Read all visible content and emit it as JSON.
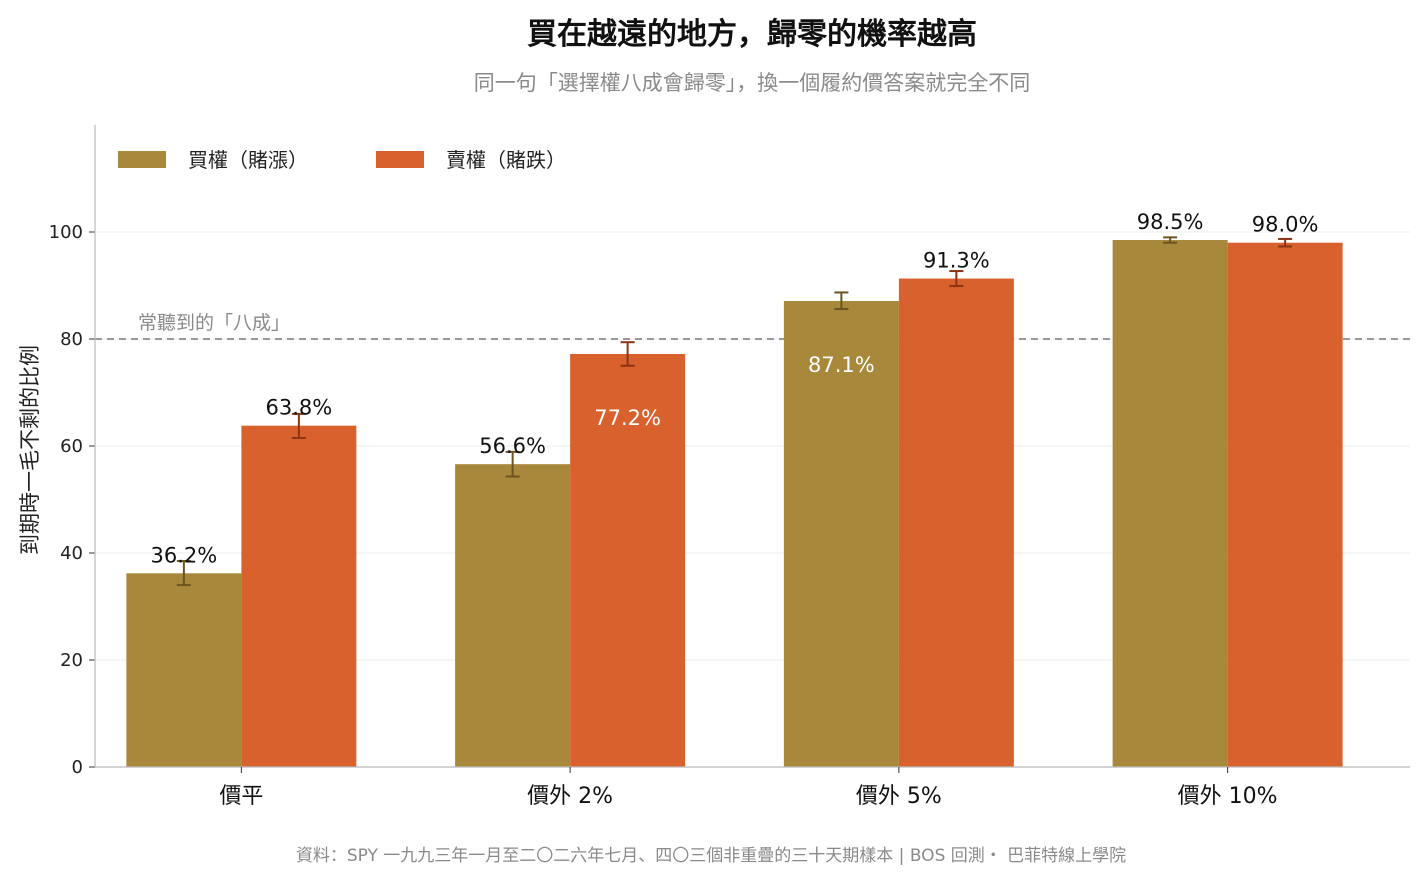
{
  "title": "買在越遠的地方，歸零的機率越高",
  "subtitle": "同一句「選擇權八成會歸零」，換一個履約價答案就完全不同",
  "footer": "資料：SPY 一九九三年一月至二〇二六年七月、四〇三個非重疊的三十天期樣本 | BOS 回測・ 巴菲特線上學院",
  "colors": {
    "call": "#a8883a",
    "put": "#d9612e",
    "call_err": "#6b5420",
    "put_err": "#8a3414",
    "ref_line": "#999999",
    "grid": "#ececec",
    "axis": "#bbbbbb"
  },
  "chart_data": {
    "type": "bar",
    "categories": [
      "價平",
      "價外 2%",
      "價外 5%",
      "價外 10%"
    ],
    "series": [
      {
        "name": "買權（賭漲）",
        "values": [
          36.2,
          56.6,
          87.1,
          98.5
        ],
        "labels": [
          "36.2%",
          "56.6%",
          "87.1%",
          "98.5%"
        ],
        "err_low": [
          34.0,
          54.3,
          85.6,
          98.0
        ],
        "err_high": [
          38.5,
          58.9,
          88.7,
          99.0
        ],
        "label_inside": [
          false,
          false,
          true,
          false
        ]
      },
      {
        "name": "賣權（賭跌）",
        "values": [
          63.8,
          77.2,
          91.3,
          98.0
        ],
        "labels": [
          "63.8%",
          "77.2%",
          "91.3%",
          "98.0%"
        ],
        "err_low": [
          61.5,
          75.0,
          89.9,
          97.3
        ],
        "err_high": [
          66.0,
          79.4,
          92.7,
          98.7
        ],
        "label_inside": [
          false,
          true,
          false,
          false
        ]
      }
    ],
    "ylabel": "到期時一毛不剩的比例",
    "ylim": [
      0,
      120
    ],
    "yticks": [
      0,
      20,
      40,
      60,
      80,
      100
    ],
    "reference_line": {
      "value": 80,
      "label": "常聽到的「八成」"
    },
    "grid": "horizontal",
    "legend": "top-left"
  }
}
